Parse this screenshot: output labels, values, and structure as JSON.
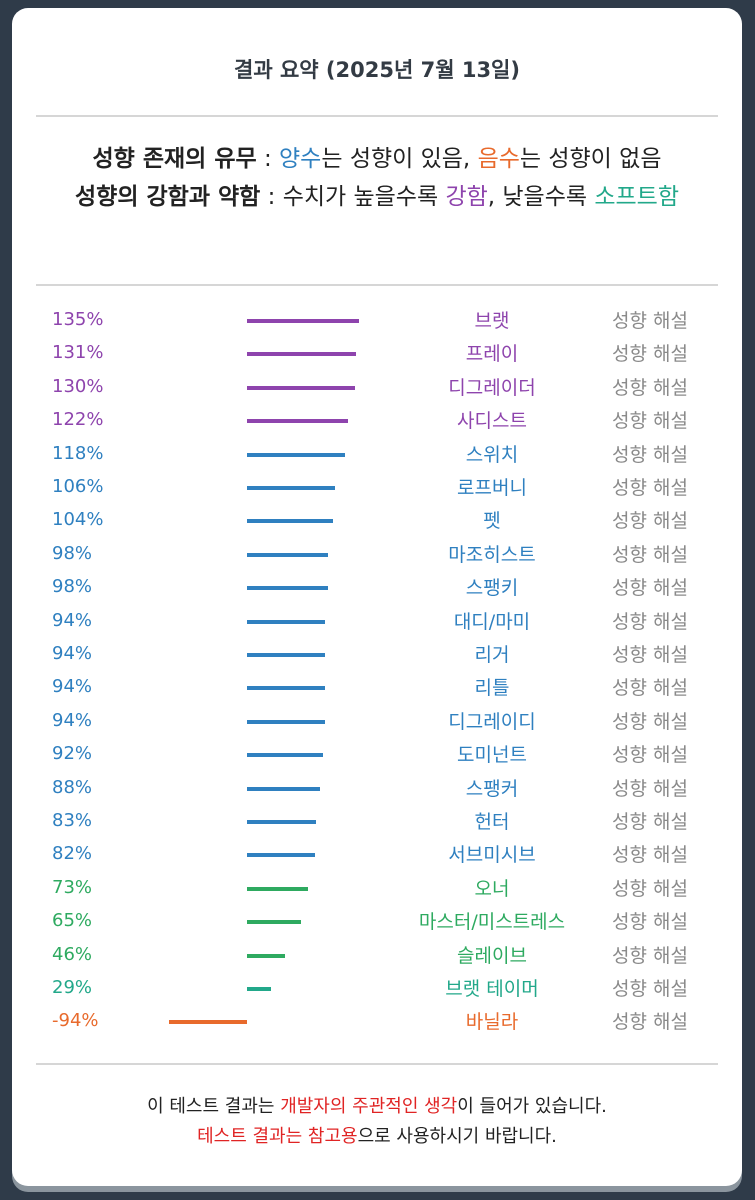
{
  "header": {
    "title": "결과 요약 (2025년 7월 13일)"
  },
  "legend": {
    "line1": {
      "label": "성향 존재의 유무",
      "sep": " : ",
      "pos_word": "양수",
      "pos_rest": "는 성향이 있음, ",
      "neg_word": "음수",
      "neg_rest": "는 성향이 없음"
    },
    "line2": {
      "label": "성향의 강함과 약함",
      "sep": " : ",
      "text1": "수치가 높을수록 ",
      "strong_word": "강함",
      "text2": ", 낮을수록 ",
      "soft_word": "소프트함"
    }
  },
  "colors": {
    "purple": "#8e44ad",
    "blue": "#2f80c0",
    "green": "#2eaa60",
    "teal": "#22a88a",
    "orange": "#e86a2c"
  },
  "rows": [
    {
      "pct": "135%",
      "value": 135,
      "name": "브랫",
      "desc": "성향 해설",
      "color": "#8e44ad"
    },
    {
      "pct": "131%",
      "value": 131,
      "name": "프레이",
      "desc": "성향 해설",
      "color": "#8e44ad"
    },
    {
      "pct": "130%",
      "value": 130,
      "name": "디그레이더",
      "desc": "성향 해설",
      "color": "#8e44ad"
    },
    {
      "pct": "122%",
      "value": 122,
      "name": "사디스트",
      "desc": "성향 해설",
      "color": "#8e44ad"
    },
    {
      "pct": "118%",
      "value": 118,
      "name": "스위치",
      "desc": "성향 해설",
      "color": "#2f80c0"
    },
    {
      "pct": "106%",
      "value": 106,
      "name": "로프버니",
      "desc": "성향 해설",
      "color": "#2f80c0"
    },
    {
      "pct": "104%",
      "value": 104,
      "name": "펫",
      "desc": "성향 해설",
      "color": "#2f80c0"
    },
    {
      "pct": "98%",
      "value": 98,
      "name": "마조히스트",
      "desc": "성향 해설",
      "color": "#2f80c0"
    },
    {
      "pct": "98%",
      "value": 98,
      "name": "스팽키",
      "desc": "성향 해설",
      "color": "#2f80c0"
    },
    {
      "pct": "94%",
      "value": 94,
      "name": "대디/마미",
      "desc": "성향 해설",
      "color": "#2f80c0"
    },
    {
      "pct": "94%",
      "value": 94,
      "name": "리거",
      "desc": "성향 해설",
      "color": "#2f80c0"
    },
    {
      "pct": "94%",
      "value": 94,
      "name": "리틀",
      "desc": "성향 해설",
      "color": "#2f80c0"
    },
    {
      "pct": "94%",
      "value": 94,
      "name": "디그레이디",
      "desc": "성향 해설",
      "color": "#2f80c0"
    },
    {
      "pct": "92%",
      "value": 92,
      "name": "도미넌트",
      "desc": "성향 해설",
      "color": "#2f80c0"
    },
    {
      "pct": "88%",
      "value": 88,
      "name": "스팽커",
      "desc": "성향 해설",
      "color": "#2f80c0"
    },
    {
      "pct": "83%",
      "value": 83,
      "name": "헌터",
      "desc": "성향 해설",
      "color": "#2f80c0"
    },
    {
      "pct": "82%",
      "value": 82,
      "name": "서브미시브",
      "desc": "성향 해설",
      "color": "#2f80c0"
    },
    {
      "pct": "73%",
      "value": 73,
      "name": "오너",
      "desc": "성향 해설",
      "color": "#2eaa60"
    },
    {
      "pct": "65%",
      "value": 65,
      "name": "마스터/미스트레스",
      "desc": "성향 해설",
      "color": "#2eaa60"
    },
    {
      "pct": "46%",
      "value": 46,
      "name": "슬레이브",
      "desc": "성향 해설",
      "color": "#2eaa60"
    },
    {
      "pct": "29%",
      "value": 29,
      "name": "브랫 테이머",
      "desc": "성향 해설",
      "color": "#22a88a"
    },
    {
      "pct": "-94%",
      "value": -94,
      "name": "바닐라",
      "desc": "성향 해설",
      "color": "#e86a2c"
    }
  ],
  "footer": {
    "line1": {
      "t1": "이 테스트 결과는 ",
      "r1": "개발자의 주관적인 생각",
      "t2": "이 들어가 있습니다."
    },
    "line2": {
      "r1": "테스트 결과는 참고용",
      "t1": "으로 사용하시기 바랍니다."
    }
  }
}
